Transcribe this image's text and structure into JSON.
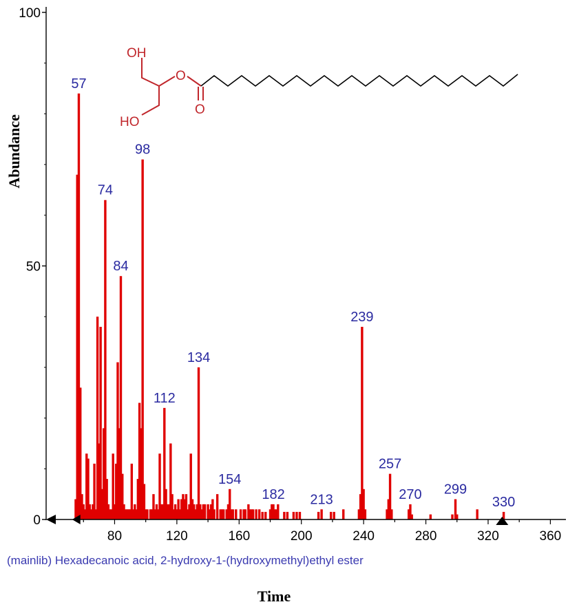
{
  "colors": {
    "peaks": "#e00000",
    "peak_labels": "#2a2aa0",
    "caption": "#3a3ab0",
    "structure": "#c0262b",
    "axes": "#000000"
  },
  "caption": "(mainlib) Hexadecanoic acid, 2-hydroxy-1-(hydroxymethyl)ethyl ester",
  "structure": {
    "atoms": {
      "oh_top": "OH",
      "ester_o": "O",
      "carbonyl_o": "O",
      "ho_bottom": "HO"
    }
  },
  "chart_data": {
    "type": "bar",
    "title": "",
    "xlabel": "Time",
    "ylabel": "Abundance",
    "xlim": [
      36,
      370
    ],
    "ylim": [
      0,
      100
    ],
    "x_ticks": [
      80,
      120,
      160,
      200,
      240,
      280,
      320,
      360
    ],
    "y_ticks": [
      0,
      50,
      100
    ],
    "grid": false,
    "legend": "none",
    "markers": [
      58,
      329
    ],
    "labeled_peaks": [
      {
        "x": 57,
        "y": 84,
        "label": "57"
      },
      {
        "x": 74,
        "y": 63,
        "label": "74"
      },
      {
        "x": 84,
        "y": 48,
        "label": "84"
      },
      {
        "x": 98,
        "y": 71,
        "label": "98"
      },
      {
        "x": 112,
        "y": 22,
        "label": "112"
      },
      {
        "x": 134,
        "y": 30,
        "label": "134"
      },
      {
        "x": 154,
        "y": 6,
        "label": "154"
      },
      {
        "x": 182,
        "y": 3,
        "label": "182"
      },
      {
        "x": 213,
        "y": 2,
        "label": "213"
      },
      {
        "x": 239,
        "y": 38,
        "label": "239"
      },
      {
        "x": 257,
        "y": 9,
        "label": "257"
      },
      {
        "x": 270,
        "y": 3,
        "label": "270"
      },
      {
        "x": 299,
        "y": 4,
        "label": "299"
      },
      {
        "x": 330,
        "y": 1.5,
        "label": "330"
      }
    ],
    "peaks": [
      [
        55,
        4
      ],
      [
        56,
        68
      ],
      [
        57,
        84
      ],
      [
        58,
        26
      ],
      [
        59,
        5
      ],
      [
        60,
        3
      ],
      [
        61,
        2
      ],
      [
        62,
        13
      ],
      [
        63,
        12
      ],
      [
        64,
        3
      ],
      [
        65,
        2
      ],
      [
        66,
        3
      ],
      [
        67,
        11
      ],
      [
        68,
        2
      ],
      [
        69,
        40
      ],
      [
        70,
        15
      ],
      [
        71,
        38
      ],
      [
        72,
        6
      ],
      [
        73,
        18
      ],
      [
        74,
        63
      ],
      [
        75,
        8
      ],
      [
        76,
        3
      ],
      [
        77,
        2
      ],
      [
        78,
        2
      ],
      [
        79,
        13
      ],
      [
        80,
        3
      ],
      [
        81,
        11
      ],
      [
        82,
        31
      ],
      [
        83,
        18
      ],
      [
        84,
        48
      ],
      [
        85,
        9
      ],
      [
        86,
        3
      ],
      [
        87,
        2
      ],
      [
        88,
        2
      ],
      [
        89,
        2
      ],
      [
        90,
        2
      ],
      [
        91,
        11
      ],
      [
        92,
        2
      ],
      [
        93,
        3
      ],
      [
        94,
        2
      ],
      [
        95,
        8
      ],
      [
        96,
        23
      ],
      [
        97,
        18
      ],
      [
        98,
        71
      ],
      [
        99,
        7
      ],
      [
        100,
        2
      ],
      [
        101,
        2
      ],
      [
        103,
        2
      ],
      [
        104,
        2
      ],
      [
        105,
        5
      ],
      [
        106,
        2
      ],
      [
        107,
        3
      ],
      [
        108,
        2
      ],
      [
        109,
        13
      ],
      [
        110,
        3
      ],
      [
        111,
        3
      ],
      [
        112,
        22
      ],
      [
        113,
        6
      ],
      [
        114,
        3
      ],
      [
        115,
        3
      ],
      [
        116,
        15
      ],
      [
        117,
        5
      ],
      [
        118,
        2
      ],
      [
        119,
        3
      ],
      [
        120,
        2
      ],
      [
        121,
        4
      ],
      [
        122,
        2
      ],
      [
        123,
        4
      ],
      [
        124,
        5
      ],
      [
        125,
        4
      ],
      [
        126,
        5
      ],
      [
        127,
        2
      ],
      [
        128,
        3
      ],
      [
        129,
        13
      ],
      [
        130,
        4
      ],
      [
        131,
        3
      ],
      [
        132,
        2
      ],
      [
        133,
        3
      ],
      [
        134,
        30
      ],
      [
        135,
        3
      ],
      [
        136,
        2
      ],
      [
        137,
        3
      ],
      [
        138,
        3
      ],
      [
        140,
        3
      ],
      [
        141,
        2
      ],
      [
        142,
        3
      ],
      [
        143,
        4
      ],
      [
        144,
        2
      ],
      [
        146,
        5
      ],
      [
        148,
        2
      ],
      [
        149,
        2
      ],
      [
        150,
        2
      ],
      [
        152,
        2
      ],
      [
        153,
        3
      ],
      [
        154,
        6
      ],
      [
        155,
        2
      ],
      [
        156,
        2
      ],
      [
        158,
        2
      ],
      [
        161,
        2
      ],
      [
        163,
        2
      ],
      [
        164,
        2
      ],
      [
        166,
        3
      ],
      [
        167,
        2
      ],
      [
        168,
        2
      ],
      [
        169,
        2
      ],
      [
        171,
        2
      ],
      [
        173,
        2
      ],
      [
        175,
        1.5
      ],
      [
        177,
        1.5
      ],
      [
        180,
        2
      ],
      [
        181,
        3
      ],
      [
        182,
        3
      ],
      [
        183,
        2
      ],
      [
        184,
        2
      ],
      [
        185,
        3
      ],
      [
        189,
        1.5
      ],
      [
        191,
        1.5
      ],
      [
        195,
        1.5
      ],
      [
        197,
        1.5
      ],
      [
        199,
        1.5
      ],
      [
        211,
        1.5
      ],
      [
        213,
        2
      ],
      [
        219,
        1.5
      ],
      [
        221,
        1.5
      ],
      [
        227,
        2
      ],
      [
        237,
        2
      ],
      [
        238,
        5
      ],
      [
        239,
        38
      ],
      [
        240,
        6
      ],
      [
        241,
        2
      ],
      [
        255,
        2
      ],
      [
        256,
        4
      ],
      [
        257,
        9
      ],
      [
        258,
        2
      ],
      [
        269,
        2
      ],
      [
        270,
        3
      ],
      [
        271,
        1
      ],
      [
        283,
        1
      ],
      [
        297,
        1
      ],
      [
        299,
        4
      ],
      [
        300,
        1
      ],
      [
        313,
        2
      ],
      [
        330,
        1.5
      ]
    ]
  }
}
